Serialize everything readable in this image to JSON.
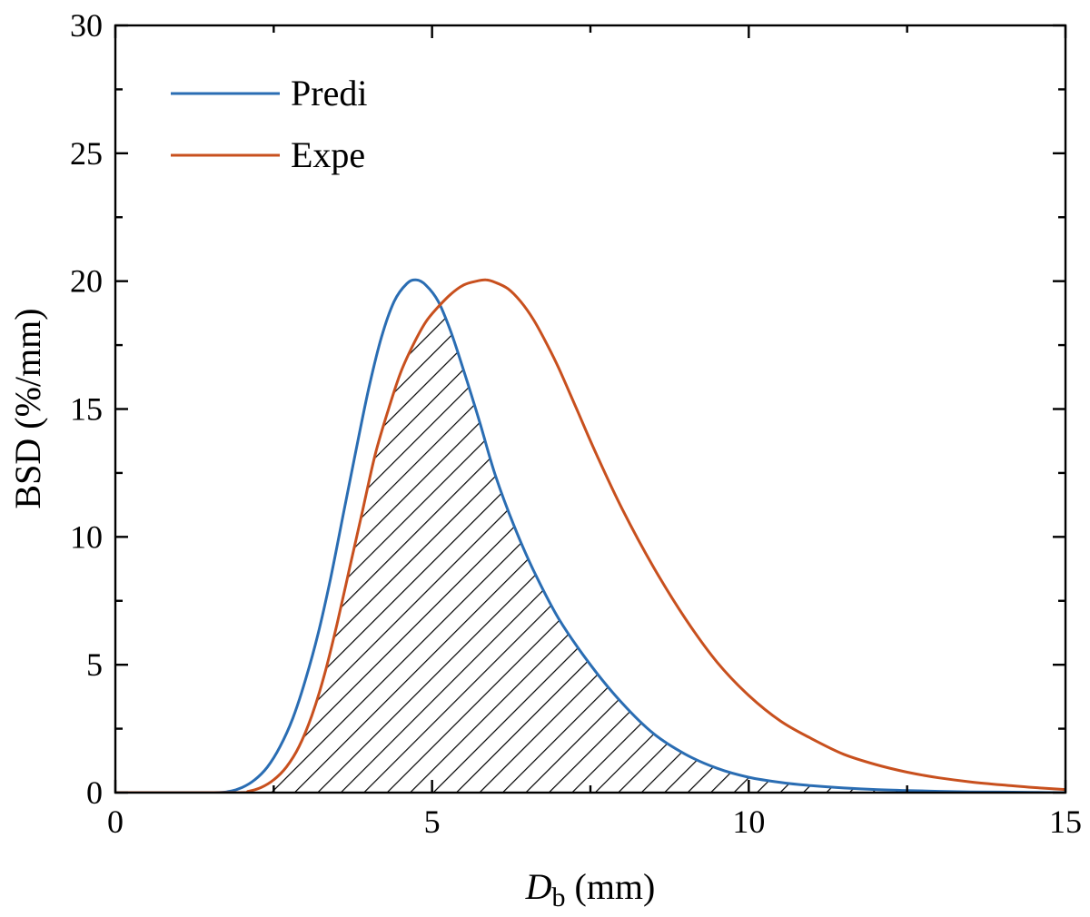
{
  "chart_data": {
    "type": "line",
    "title": "",
    "xlabel": "D",
    "xlabel_sub": "b",
    "xlabel_unit": " (mm)",
    "ylabel": "BSD (%/mm)",
    "xlim": [
      0,
      15
    ],
    "ylim": [
      0,
      30
    ],
    "xticks": [
      0,
      5,
      10,
      15
    ],
    "yticks": [
      0,
      5,
      10,
      15,
      20,
      25,
      30
    ],
    "grid": false,
    "legend_position": "top-left",
    "overlap_region": "hatched",
    "series": [
      {
        "name": "Predi",
        "color": "#2a6db3",
        "x": [
          1.5,
          1.8,
          2.0,
          2.2,
          2.4,
          2.6,
          2.8,
          3.0,
          3.2,
          3.4,
          3.6,
          3.8,
          4.0,
          4.2,
          4.4,
          4.6,
          4.75,
          4.9,
          5.1,
          5.3,
          5.5,
          5.75,
          6.0,
          6.3,
          6.6,
          7.0,
          7.5,
          8.0,
          8.5,
          9.0,
          9.5,
          10.0,
          10.5,
          11.0,
          11.5,
          12.0,
          12.5,
          13.0,
          13.5,
          14.0,
          14.5,
          15.0
        ],
        "y": [
          0.0,
          0.05,
          0.2,
          0.5,
          1.0,
          1.8,
          2.9,
          4.4,
          6.2,
          8.4,
          10.9,
          13.4,
          15.8,
          17.8,
          19.2,
          19.9,
          20.05,
          19.85,
          19.2,
          18.0,
          16.5,
          14.5,
          12.4,
          10.4,
          8.7,
          6.8,
          5.0,
          3.5,
          2.3,
          1.5,
          0.95,
          0.6,
          0.4,
          0.27,
          0.18,
          0.12,
          0.08,
          0.05,
          0.03,
          0.02,
          0.01,
          0.0
        ]
      },
      {
        "name": "Expe",
        "color": "#c8501e",
        "x": [
          1.9,
          2.1,
          2.3,
          2.5,
          2.7,
          2.9,
          3.1,
          3.3,
          3.5,
          3.7,
          3.9,
          4.1,
          4.3,
          4.5,
          4.7,
          4.9,
          5.1,
          5.3,
          5.5,
          5.7,
          5.85,
          6.0,
          6.2,
          6.4,
          6.6,
          6.8,
          7.0,
          7.3,
          7.6,
          8.0,
          8.5,
          9.0,
          9.5,
          10.0,
          10.5,
          11.0,
          11.5,
          12.0,
          12.5,
          13.0,
          13.5,
          14.0,
          14.5,
          15.0
        ],
        "y": [
          0.0,
          0.05,
          0.2,
          0.5,
          1.0,
          1.8,
          3.0,
          4.6,
          6.6,
          8.8,
          11.0,
          13.2,
          14.9,
          16.4,
          17.5,
          18.4,
          19.0,
          19.5,
          19.85,
          20.0,
          20.05,
          19.95,
          19.7,
          19.2,
          18.5,
          17.6,
          16.6,
          14.9,
          13.2,
          11.1,
          8.8,
          6.8,
          5.1,
          3.8,
          2.8,
          2.1,
          1.5,
          1.1,
          0.8,
          0.58,
          0.42,
          0.3,
          0.2,
          0.12
        ]
      }
    ]
  }
}
